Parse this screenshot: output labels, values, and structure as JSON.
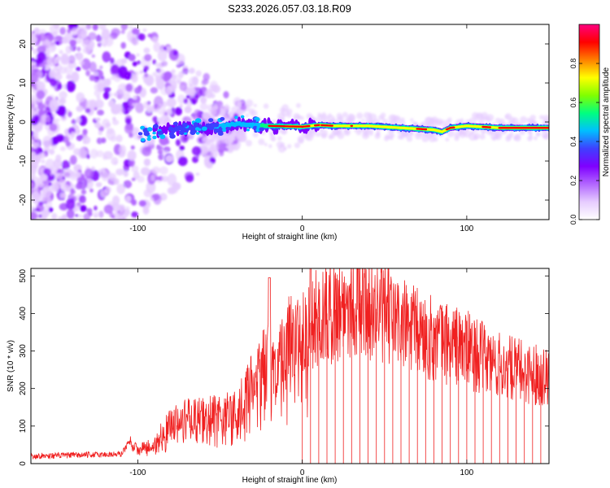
{
  "page": {
    "title": "S233.2026.057.03.18.R09"
  },
  "colors": {
    "frame": "#000000",
    "line_series": "#f02020",
    "colormap": [
      "#ffffff",
      "#e6ccff",
      "#b266ff",
      "#7f00ff",
      "#3f3fff",
      "#00bfff",
      "#00ff80",
      "#80ff00",
      "#ffff00",
      "#ff8000",
      "#ff0000",
      "#ff0080"
    ]
  },
  "chart_data": [
    {
      "type": "heatmap",
      "name": "spectrogram",
      "title": "S233.2026.057.03.18.R09",
      "xlabel": "Height of straight line (km)",
      "ylabel": "Frequency (Hz)",
      "xlim": [
        -165,
        150
      ],
      "ylim": [
        -25,
        25
      ],
      "x_ticks": [
        -100,
        0,
        100
      ],
      "y_ticks": [
        -20,
        -10,
        0,
        10,
        20
      ],
      "colorbar": {
        "label": "Normalized spectral amplitude",
        "range": [
          0.0,
          1.0
        ],
        "ticks": [
          0.0,
          0.2,
          0.4,
          0.6,
          0.8
        ]
      },
      "ridge": {
        "x": [
          -100,
          -80,
          -60,
          -40,
          -20,
          0,
          10,
          20,
          40,
          60,
          80,
          85,
          90,
          100,
          120,
          150
        ],
        "freq": [
          -3,
          -2,
          -1.5,
          -0.5,
          -1,
          -1.2,
          -0.8,
          -1,
          -1,
          -1.5,
          -2,
          -2.5,
          -1.5,
          -1,
          -1.5,
          -1.5
        ]
      }
    },
    {
      "type": "line",
      "name": "snr",
      "xlabel": "Height of straight line (km)",
      "ylabel": "SNR (10 * v/v)",
      "xlim": [
        -165,
        150
      ],
      "ylim": [
        0,
        520
      ],
      "x_ticks": [
        -100,
        0,
        100
      ],
      "y_ticks": [
        0,
        100,
        200,
        300,
        400,
        500
      ],
      "envelope": {
        "x": [
          -165,
          -110,
          -105,
          -100,
          -90,
          -80,
          -70,
          -60,
          -50,
          -40,
          -30,
          -20,
          -15,
          -10,
          -5,
          0,
          10,
          20,
          30,
          40,
          50,
          60,
          70,
          80,
          90,
          100,
          110,
          120,
          130,
          140,
          150
        ],
        "y": [
          20,
          25,
          60,
          35,
          60,
          110,
          130,
          130,
          140,
          150,
          220,
          300,
          260,
          320,
          360,
          360,
          390,
          410,
          430,
          425,
          400,
          370,
          350,
          330,
          320,
          305,
          280,
          260,
          250,
          240,
          235
        ]
      },
      "dropout_start_x": 0,
      "dropout_spacing": 5
    }
  ]
}
